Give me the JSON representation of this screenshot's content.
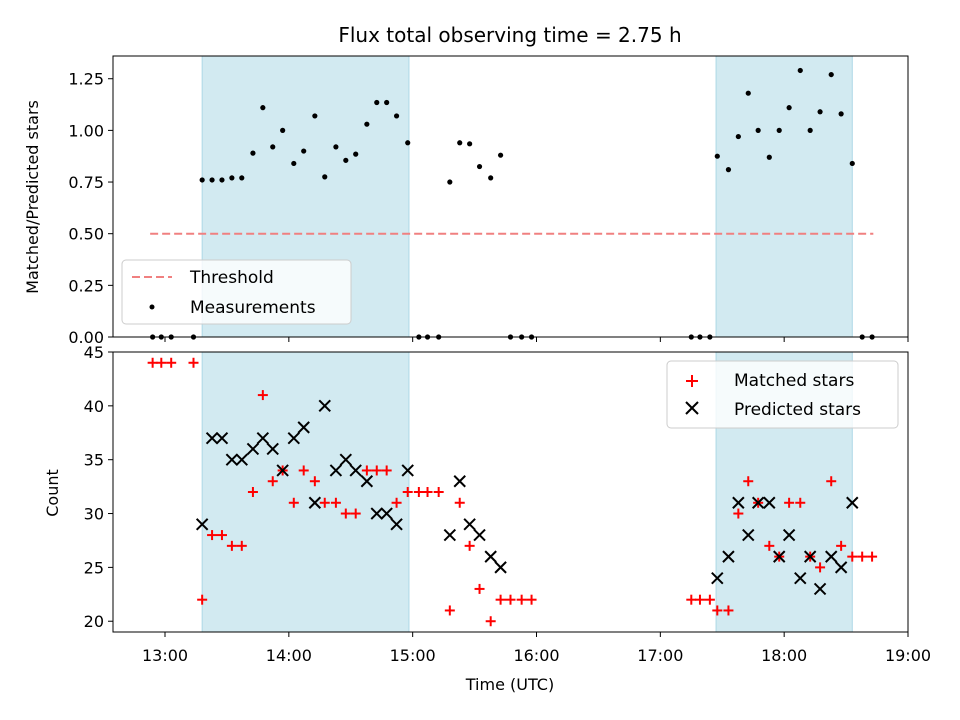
{
  "chart_data": [
    {
      "type": "scatter",
      "title": "Flux total observing time = 2.75 h",
      "xlabel": "",
      "ylabel": "Matched/Predicted stars",
      "xlim": [
        12.58,
        19.0
      ],
      "ylim": [
        0.0,
        1.36
      ],
      "yticks": [
        0.0,
        0.25,
        0.5,
        0.75,
        1.0,
        1.25
      ],
      "ytick_labels": [
        "0.00",
        "0.25",
        "0.50",
        "0.75",
        "1.00",
        "1.25"
      ],
      "shaded_spans": [
        [
          13.3,
          14.97
        ],
        [
          17.45,
          18.55
        ]
      ],
      "threshold": {
        "name": "Threshold",
        "y": 0.5,
        "x": [
          12.88,
          18.72
        ],
        "color": "#f08080"
      },
      "measurements": {
        "name": "Measurements",
        "color": "#000000",
        "points": [
          [
            12.9,
            0
          ],
          [
            12.97,
            0
          ],
          [
            13.05,
            0
          ],
          [
            13.23,
            0
          ],
          [
            13.3,
            0.76
          ],
          [
            13.38,
            0.76
          ],
          [
            13.46,
            0.76
          ],
          [
            13.54,
            0.77
          ],
          [
            13.62,
            0.77
          ],
          [
            13.71,
            0.89
          ],
          [
            13.79,
            1.11
          ],
          [
            13.87,
            0.92
          ],
          [
            13.95,
            1.0
          ],
          [
            14.04,
            0.84
          ],
          [
            14.12,
            0.9
          ],
          [
            14.21,
            1.07
          ],
          [
            14.29,
            0.775
          ],
          [
            14.38,
            0.92
          ],
          [
            14.46,
            0.855
          ],
          [
            14.54,
            0.885
          ],
          [
            14.63,
            1.03
          ],
          [
            14.71,
            1.135
          ],
          [
            14.79,
            1.135
          ],
          [
            14.87,
            1.07
          ],
          [
            14.96,
            0.94
          ],
          [
            15.05,
            0
          ],
          [
            15.12,
            0
          ],
          [
            15.21,
            0
          ],
          [
            15.3,
            0.75
          ],
          [
            15.38,
            0.94
          ],
          [
            15.46,
            0.935
          ],
          [
            15.54,
            0.825
          ],
          [
            15.63,
            0.77
          ],
          [
            15.71,
            0.88
          ],
          [
            15.79,
            0
          ],
          [
            15.88,
            0
          ],
          [
            15.96,
            0
          ],
          [
            17.25,
            0
          ],
          [
            17.32,
            0
          ],
          [
            17.4,
            0
          ],
          [
            17.46,
            0.875
          ],
          [
            17.55,
            0.81
          ],
          [
            17.63,
            0.97
          ],
          [
            17.71,
            1.18
          ],
          [
            17.79,
            1.0
          ],
          [
            17.88,
            0.87
          ],
          [
            17.96,
            1.0
          ],
          [
            18.04,
            1.11
          ],
          [
            18.13,
            1.29
          ],
          [
            18.21,
            1.0
          ],
          [
            18.29,
            1.09
          ],
          [
            18.38,
            1.27
          ],
          [
            18.46,
            1.08
          ],
          [
            18.55,
            0.84
          ],
          [
            18.63,
            0
          ],
          [
            18.71,
            0
          ]
        ]
      },
      "legend": {
        "placement": "lower-left",
        "entries": [
          "Threshold",
          "Measurements"
        ]
      }
    },
    {
      "type": "scatter",
      "title": "",
      "xlabel": "Time (UTC)",
      "ylabel": "Count",
      "xlim": [
        12.58,
        19.0
      ],
      "ylim": [
        19.0,
        45.0
      ],
      "xticks": [
        13,
        14,
        15,
        16,
        17,
        18,
        19
      ],
      "xtick_labels": [
        "13:00",
        "14:00",
        "15:00",
        "16:00",
        "17:00",
        "18:00",
        "19:00"
      ],
      "yticks": [
        20,
        25,
        30,
        35,
        40,
        45
      ],
      "ytick_labels": [
        "20",
        "25",
        "30",
        "35",
        "40",
        "45"
      ],
      "shaded_spans": [
        [
          13.3,
          14.97
        ],
        [
          17.45,
          18.55
        ]
      ],
      "series": [
        {
          "name": "Matched stars",
          "marker": "+",
          "color": "#ff0000",
          "points": [
            [
              12.9,
              44
            ],
            [
              12.97,
              44
            ],
            [
              13.05,
              44
            ],
            [
              13.23,
              44
            ],
            [
              13.3,
              22
            ],
            [
              13.38,
              28
            ],
            [
              13.46,
              28
            ],
            [
              13.54,
              27
            ],
            [
              13.62,
              27
            ],
            [
              13.71,
              32
            ],
            [
              13.79,
              41
            ],
            [
              13.87,
              33
            ],
            [
              13.95,
              34
            ],
            [
              14.04,
              31
            ],
            [
              14.12,
              34
            ],
            [
              14.21,
              33
            ],
            [
              14.29,
              31
            ],
            [
              14.38,
              31
            ],
            [
              14.46,
              30
            ],
            [
              14.54,
              30
            ],
            [
              14.63,
              34
            ],
            [
              14.71,
              34
            ],
            [
              14.79,
              34
            ],
            [
              14.87,
              31
            ],
            [
              14.96,
              32
            ],
            [
              15.05,
              32
            ],
            [
              15.12,
              32
            ],
            [
              15.21,
              32
            ],
            [
              15.3,
              21
            ],
            [
              15.38,
              31
            ],
            [
              15.46,
              27
            ],
            [
              15.54,
              23
            ],
            [
              15.63,
              20
            ],
            [
              15.71,
              22
            ],
            [
              15.79,
              22
            ],
            [
              15.88,
              22
            ],
            [
              15.96,
              22
            ],
            [
              17.25,
              22
            ],
            [
              17.32,
              22
            ],
            [
              17.4,
              22
            ],
            [
              17.46,
              21
            ],
            [
              17.55,
              21
            ],
            [
              17.63,
              30
            ],
            [
              17.71,
              33
            ],
            [
              17.79,
              31
            ],
            [
              17.88,
              27
            ],
            [
              17.96,
              26
            ],
            [
              18.04,
              31
            ],
            [
              18.13,
              31
            ],
            [
              18.21,
              26
            ],
            [
              18.29,
              25
            ],
            [
              18.38,
              33
            ],
            [
              18.46,
              27
            ],
            [
              18.55,
              26
            ],
            [
              18.63,
              26
            ],
            [
              18.71,
              26
            ]
          ]
        },
        {
          "name": "Predicted stars",
          "marker": "x",
          "color": "#000000",
          "points": [
            [
              13.3,
              29
            ],
            [
              13.38,
              37
            ],
            [
              13.46,
              37
            ],
            [
              13.54,
              35
            ],
            [
              13.62,
              35
            ],
            [
              13.71,
              36
            ],
            [
              13.79,
              37
            ],
            [
              13.87,
              36
            ],
            [
              13.95,
              34
            ],
            [
              14.04,
              37
            ],
            [
              14.12,
              38
            ],
            [
              14.21,
              31
            ],
            [
              14.29,
              40
            ],
            [
              14.38,
              34
            ],
            [
              14.46,
              35
            ],
            [
              14.54,
              34
            ],
            [
              14.63,
              33
            ],
            [
              14.71,
              30
            ],
            [
              14.79,
              30
            ],
            [
              14.87,
              29
            ],
            [
              14.96,
              34
            ],
            [
              15.3,
              28
            ],
            [
              15.38,
              33
            ],
            [
              15.46,
              29
            ],
            [
              15.54,
              28
            ],
            [
              15.63,
              26
            ],
            [
              15.71,
              25
            ],
            [
              17.46,
              24
            ],
            [
              17.55,
              26
            ],
            [
              17.63,
              31
            ],
            [
              17.71,
              28
            ],
            [
              17.79,
              31
            ],
            [
              17.88,
              31
            ],
            [
              17.96,
              26
            ],
            [
              18.04,
              28
            ],
            [
              18.13,
              24
            ],
            [
              18.21,
              26
            ],
            [
              18.29,
              23
            ],
            [
              18.38,
              26
            ],
            [
              18.46,
              25
            ],
            [
              18.55,
              31
            ]
          ]
        }
      ],
      "legend": {
        "placement": "upper-right",
        "entries": [
          "Matched stars",
          "Predicted stars"
        ]
      }
    }
  ],
  "colors": {
    "span_fill": "#add8e6"
  }
}
